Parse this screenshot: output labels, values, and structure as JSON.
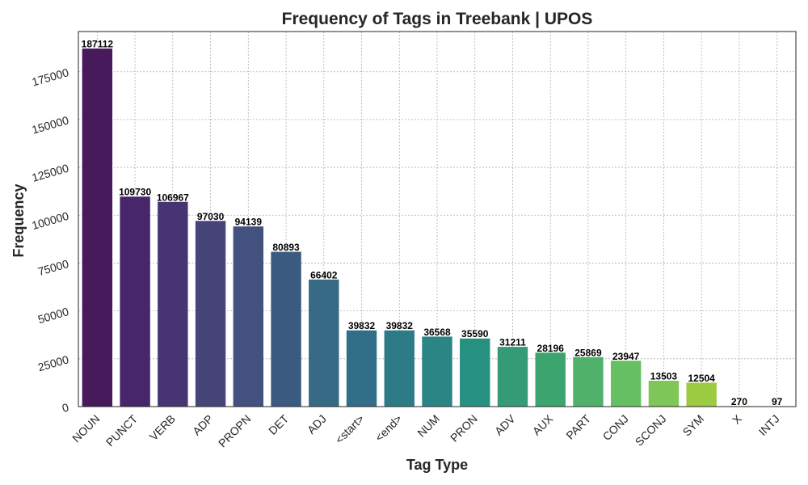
{
  "chart_data": {
    "type": "bar",
    "title": "Frequency of Tags in Treebank | UPOS",
    "xlabel": "Tag Type",
    "ylabel": "Frequency",
    "categories": [
      "NOUN",
      "PUNCT",
      "VERB",
      "ADP",
      "PROPN",
      "DET",
      "ADJ",
      "<start>",
      "<end>",
      "NUM",
      "PRON",
      "ADV",
      "AUX",
      "PART",
      "CONJ",
      "SCONJ",
      "SYM",
      "X",
      "INTJ"
    ],
    "values": [
      187112,
      109730,
      106967,
      97030,
      94139,
      80893,
      66402,
      39832,
      39832,
      36568,
      35590,
      31211,
      28196,
      25869,
      23947,
      13503,
      12504,
      270,
      97
    ],
    "value_labels": [
      "187112",
      "109730",
      "106967",
      "97030",
      "94139",
      "80893",
      "66402",
      "39832",
      "39832",
      "36568",
      "35590",
      "31211",
      "28196",
      "25869",
      "23947",
      "13503",
      "12504",
      "270",
      "97"
    ],
    "ylim": [
      0,
      196000
    ],
    "yticks": [
      0,
      25000,
      50000,
      75000,
      100000,
      125000,
      150000,
      175000
    ],
    "ytick_labels": [
      "0",
      "25000",
      "50000",
      "75000",
      "100000",
      "125000",
      "150000",
      "175000"
    ],
    "grid": true,
    "legend": "none",
    "colors": [
      "#471a5c",
      "#48266a",
      "#473573",
      "#464478",
      "#42517d",
      "#3b5a80",
      "#366a84",
      "#306f87",
      "#2e7b88",
      "#2b8584",
      "#279181",
      "#349b76",
      "#3ca46f",
      "#50b16a",
      "#66bf63",
      "#7ec657",
      "#9ccb42",
      "#d2d64a",
      "#f3e43d"
    ]
  }
}
